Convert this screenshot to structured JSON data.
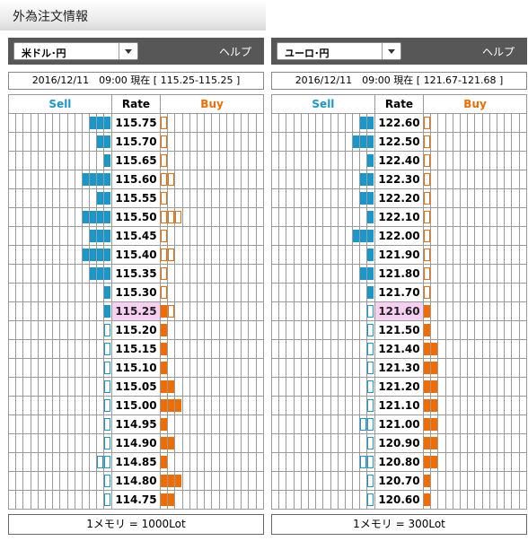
{
  "page_title": "外為注文情報",
  "colors": {
    "sell": "#1a96c8",
    "buy": "#ef6c00",
    "current_rate_bg": "#f7cff1",
    "bar": "#575757"
  },
  "panels": [
    {
      "pair": "米ドル･円",
      "help": "ヘルプ",
      "timestamp": "2016/12/11　09:00 現在 [ 115.25-115.25 ]",
      "columns": {
        "sell": "Sell",
        "rate": "Rate",
        "buy": "Buy"
      },
      "rows": [
        {
          "rate": "115.75",
          "sell": [
            1,
            1,
            1
          ],
          "buy": [
            0
          ]
        },
        {
          "rate": "115.70",
          "sell": [
            1,
            1
          ],
          "buy": [
            0
          ]
        },
        {
          "rate": "115.65",
          "sell": [
            1
          ],
          "buy": [
            0
          ]
        },
        {
          "rate": "115.60",
          "sell": [
            1,
            1,
            1,
            1
          ],
          "buy": [
            0,
            0
          ]
        },
        {
          "rate": "115.55",
          "sell": [
            1,
            1
          ],
          "buy": [
            0
          ]
        },
        {
          "rate": "115.50",
          "sell": [
            1,
            1,
            1,
            1
          ],
          "buy": [
            0,
            0,
            0
          ]
        },
        {
          "rate": "115.45",
          "sell": [
            1,
            1,
            1
          ],
          "buy": [
            0
          ]
        },
        {
          "rate": "115.40",
          "sell": [
            1,
            1,
            1,
            1
          ],
          "buy": [
            0,
            0
          ]
        },
        {
          "rate": "115.35",
          "sell": [
            1,
            1,
            1
          ],
          "buy": [
            0
          ]
        },
        {
          "rate": "115.30",
          "sell": [
            1
          ],
          "buy": [
            0
          ]
        },
        {
          "rate": "115.25",
          "sell": [
            1
          ],
          "buy": [
            1,
            0
          ],
          "current": true
        },
        {
          "rate": "115.20",
          "sell": [
            0
          ],
          "buy": [
            1
          ]
        },
        {
          "rate": "115.15",
          "sell": [
            0
          ],
          "buy": [
            1
          ]
        },
        {
          "rate": "115.10",
          "sell": [
            0
          ],
          "buy": [
            1
          ]
        },
        {
          "rate": "115.05",
          "sell": [
            0
          ],
          "buy": [
            1,
            1
          ]
        },
        {
          "rate": "115.00",
          "sell": [
            0
          ],
          "buy": [
            1,
            1,
            1
          ]
        },
        {
          "rate": "114.95",
          "sell": [
            0
          ],
          "buy": [
            1
          ]
        },
        {
          "rate": "114.90",
          "sell": [
            0
          ],
          "buy": [
            1,
            1
          ]
        },
        {
          "rate": "114.85",
          "sell": [
            0,
            0
          ],
          "buy": [
            1
          ]
        },
        {
          "rate": "114.80",
          "sell": [
            0
          ],
          "buy": [
            1,
            1,
            1
          ]
        },
        {
          "rate": "114.75",
          "sell": [
            0
          ],
          "buy": [
            1,
            1
          ]
        }
      ],
      "footer": "1メモリ = 1000Lot"
    },
    {
      "pair": "ユーロ･円",
      "help": "ヘルプ",
      "timestamp": "2016/12/11　09:00 現在 [ 121.67-121.68 ]",
      "columns": {
        "sell": "Sell",
        "rate": "Rate",
        "buy": "Buy"
      },
      "rows": [
        {
          "rate": "122.60",
          "sell": [
            1,
            1
          ],
          "buy": [
            0
          ]
        },
        {
          "rate": "122.50",
          "sell": [
            1,
            1,
            1
          ],
          "buy": [
            0
          ]
        },
        {
          "rate": "122.40",
          "sell": [
            1
          ],
          "buy": [
            0
          ]
        },
        {
          "rate": "122.30",
          "sell": [
            1,
            1
          ],
          "buy": [
            0
          ]
        },
        {
          "rate": "122.20",
          "sell": [
            1,
            1
          ],
          "buy": [
            0
          ]
        },
        {
          "rate": "122.10",
          "sell": [
            1
          ],
          "buy": [
            0
          ]
        },
        {
          "rate": "122.00",
          "sell": [
            1,
            1,
            1
          ],
          "buy": [
            0
          ]
        },
        {
          "rate": "121.90",
          "sell": [
            1
          ],
          "buy": [
            0
          ]
        },
        {
          "rate": "121.80",
          "sell": [
            1,
            1
          ],
          "buy": [
            0
          ]
        },
        {
          "rate": "121.70",
          "sell": [
            1
          ],
          "buy": [
            0
          ]
        },
        {
          "rate": "121.60",
          "sell": [
            0
          ],
          "buy": [
            1
          ],
          "current": true
        },
        {
          "rate": "121.50",
          "sell": [
            0
          ],
          "buy": [
            1
          ]
        },
        {
          "rate": "121.40",
          "sell": [
            0
          ],
          "buy": [
            1,
            1
          ]
        },
        {
          "rate": "121.30",
          "sell": [
            0
          ],
          "buy": [
            1,
            1
          ]
        },
        {
          "rate": "121.20",
          "sell": [
            0
          ],
          "buy": [
            1,
            1
          ]
        },
        {
          "rate": "121.10",
          "sell": [
            0
          ],
          "buy": [
            1,
            1
          ]
        },
        {
          "rate": "121.00",
          "sell": [
            0,
            0
          ],
          "buy": [
            1,
            1
          ]
        },
        {
          "rate": "120.90",
          "sell": [
            0
          ],
          "buy": [
            1,
            1
          ]
        },
        {
          "rate": "120.80",
          "sell": [
            0,
            0
          ],
          "buy": [
            1,
            1
          ]
        },
        {
          "rate": "120.70",
          "sell": [
            0
          ],
          "buy": [
            1
          ]
        },
        {
          "rate": "120.60",
          "sell": [
            0
          ],
          "buy": [
            1
          ]
        }
      ],
      "footer": "1メモリ = 300Lot"
    }
  ]
}
